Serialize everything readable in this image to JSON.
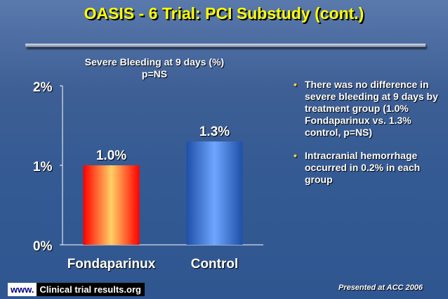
{
  "slide": {
    "title": "OASIS - 6 Trial: PCI Substudy (cont.)"
  },
  "chart_data": {
    "type": "bar",
    "title": "Severe Bleeding at 9 days (%)",
    "subtitle": "p=NS",
    "categories": [
      "Fondaparinux",
      "Control"
    ],
    "values": [
      1.0,
      1.3
    ],
    "data_labels": [
      "1.0%",
      "1.3%"
    ],
    "y_ticks": [
      {
        "value": 0,
        "label": "0%"
      },
      {
        "value": 1,
        "label": "1%"
      },
      {
        "value": 2,
        "label": "2%"
      }
    ],
    "ylim": [
      0,
      2
    ],
    "grid": false,
    "colors": {
      "fondaparinux": [
        "#ff0000",
        "#ffcf66"
      ],
      "control": [
        "#1f4fa8",
        "#6ea6ff"
      ]
    }
  },
  "bullets": [
    "There was no difference in severe bleeding at 9 days by treatment group (1.0% Fondaparinux vs. 1.3% control, p=NS)",
    "Intracranial hemorrhage occurred in 0.2% in each group"
  ],
  "footer": {
    "www": "www.",
    "brand": "Clinical trial results.org",
    "presented": "Presented at ACC 2006"
  }
}
